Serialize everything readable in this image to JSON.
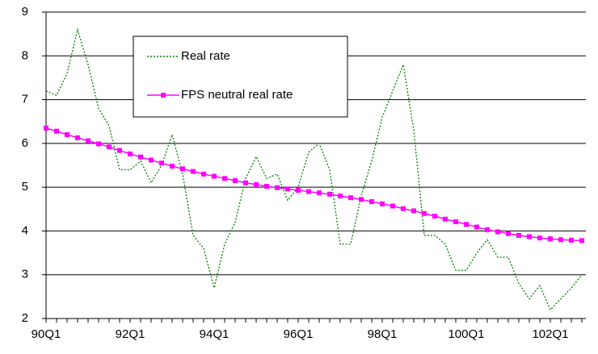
{
  "chart_data": {
    "type": "line",
    "categories": [
      "90Q1",
      null,
      null,
      null,
      null,
      null,
      null,
      null,
      "92Q1",
      null,
      null,
      null,
      null,
      null,
      null,
      null,
      "94Q1",
      null,
      null,
      null,
      null,
      null,
      null,
      null,
      "96Q1",
      null,
      null,
      null,
      null,
      null,
      null,
      null,
      "98Q1",
      null,
      null,
      null,
      null,
      null,
      null,
      null,
      "100Q1",
      null,
      null,
      null,
      null,
      null,
      null,
      null,
      "102Q1",
      null,
      null,
      null
    ],
    "series": [
      {
        "name": "Real rate",
        "color": "#008000",
        "style": "dotted",
        "markers": false,
        "values": [
          7.2,
          7.1,
          7.6,
          8.6,
          7.8,
          6.8,
          6.4,
          5.4,
          5.4,
          5.6,
          5.1,
          5.5,
          6.2,
          5.3,
          3.9,
          3.6,
          2.7,
          3.7,
          4.2,
          5.2,
          5.7,
          5.2,
          5.3,
          4.7,
          5.0,
          5.8,
          6.0,
          5.4,
          3.7,
          3.7,
          4.8,
          5.6,
          6.6,
          7.2,
          7.8,
          6.3,
          3.9,
          3.9,
          3.7,
          3.1,
          3.1,
          3.5,
          3.8,
          3.4,
          3.4,
          2.8,
          2.45,
          2.75,
          2.2,
          2.45,
          2.7,
          3.0
        ]
      },
      {
        "name": "FPS neutral real rate",
        "color": "#ff00ff",
        "style": "solid",
        "markers": true,
        "values": [
          6.35,
          6.28,
          6.2,
          6.13,
          6.06,
          5.99,
          5.92,
          5.84,
          5.76,
          5.69,
          5.62,
          5.55,
          5.48,
          5.42,
          5.36,
          5.3,
          5.25,
          5.2,
          5.15,
          5.1,
          5.06,
          5.02,
          4.99,
          4.96,
          4.93,
          4.9,
          4.87,
          4.84,
          4.8,
          4.76,
          4.72,
          4.67,
          4.62,
          4.57,
          4.51,
          4.46,
          4.4,
          4.34,
          4.27,
          4.21,
          4.15,
          4.09,
          4.03,
          3.98,
          3.94,
          3.9,
          3.87,
          3.84,
          3.82,
          3.8,
          3.79,
          3.78
        ]
      }
    ],
    "ylim": [
      2,
      9
    ],
    "yticks": [
      2,
      3,
      4,
      5,
      6,
      7,
      8,
      9
    ],
    "grid": true
  }
}
